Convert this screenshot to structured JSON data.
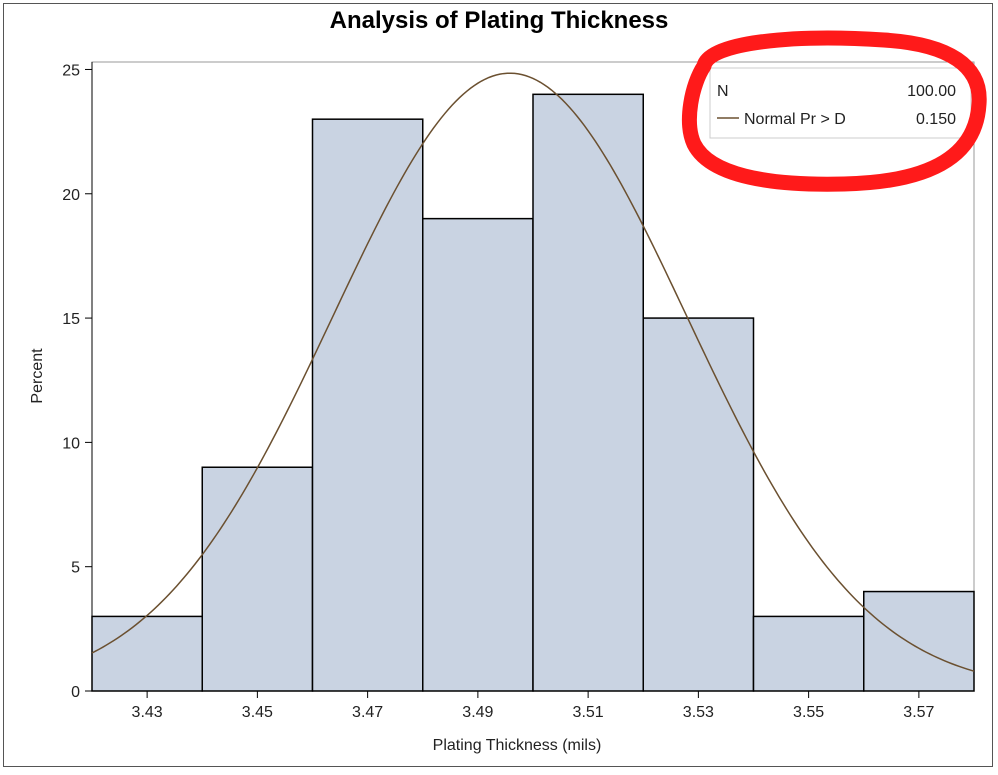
{
  "colors": {
    "bar_fill": "#c9d3e2",
    "bar_stroke": "#000000",
    "curve": "#6b5030",
    "annotation_circle": "#ff1a1a",
    "plot_frame": "#999999"
  },
  "chart_data": {
    "type": "bar",
    "title": "Analysis of Plating Thickness",
    "xlabel": "Plating Thickness (mils)",
    "ylabel": "Percent",
    "bin_edges": [
      3.42,
      3.44,
      3.46,
      3.48,
      3.5,
      3.52,
      3.54,
      3.56,
      3.58
    ],
    "values": [
      3,
      9,
      23,
      19,
      24,
      15,
      3,
      4
    ],
    "x_ticks": [
      "3.43",
      "3.45",
      "3.47",
      "3.49",
      "3.51",
      "3.53",
      "3.55",
      "3.57"
    ],
    "x_tick_values": [
      3.43,
      3.45,
      3.47,
      3.49,
      3.51,
      3.53,
      3.55,
      3.57
    ],
    "y_ticks": [
      0,
      5,
      10,
      15,
      20,
      25
    ],
    "xlim": [
      3.42,
      3.58
    ],
    "ylim": [
      0,
      25.3
    ],
    "grid": false,
    "normal_curve": {
      "mean": 3.4958,
      "sd": 0.0321,
      "peak_percent": 24.85
    },
    "inset_table": {
      "placement": "top-right",
      "rows": [
        {
          "label": "N",
          "value": "100.00"
        },
        {
          "label": "Normal Pr > D",
          "value": "0.150",
          "line_key": true
        }
      ]
    }
  }
}
